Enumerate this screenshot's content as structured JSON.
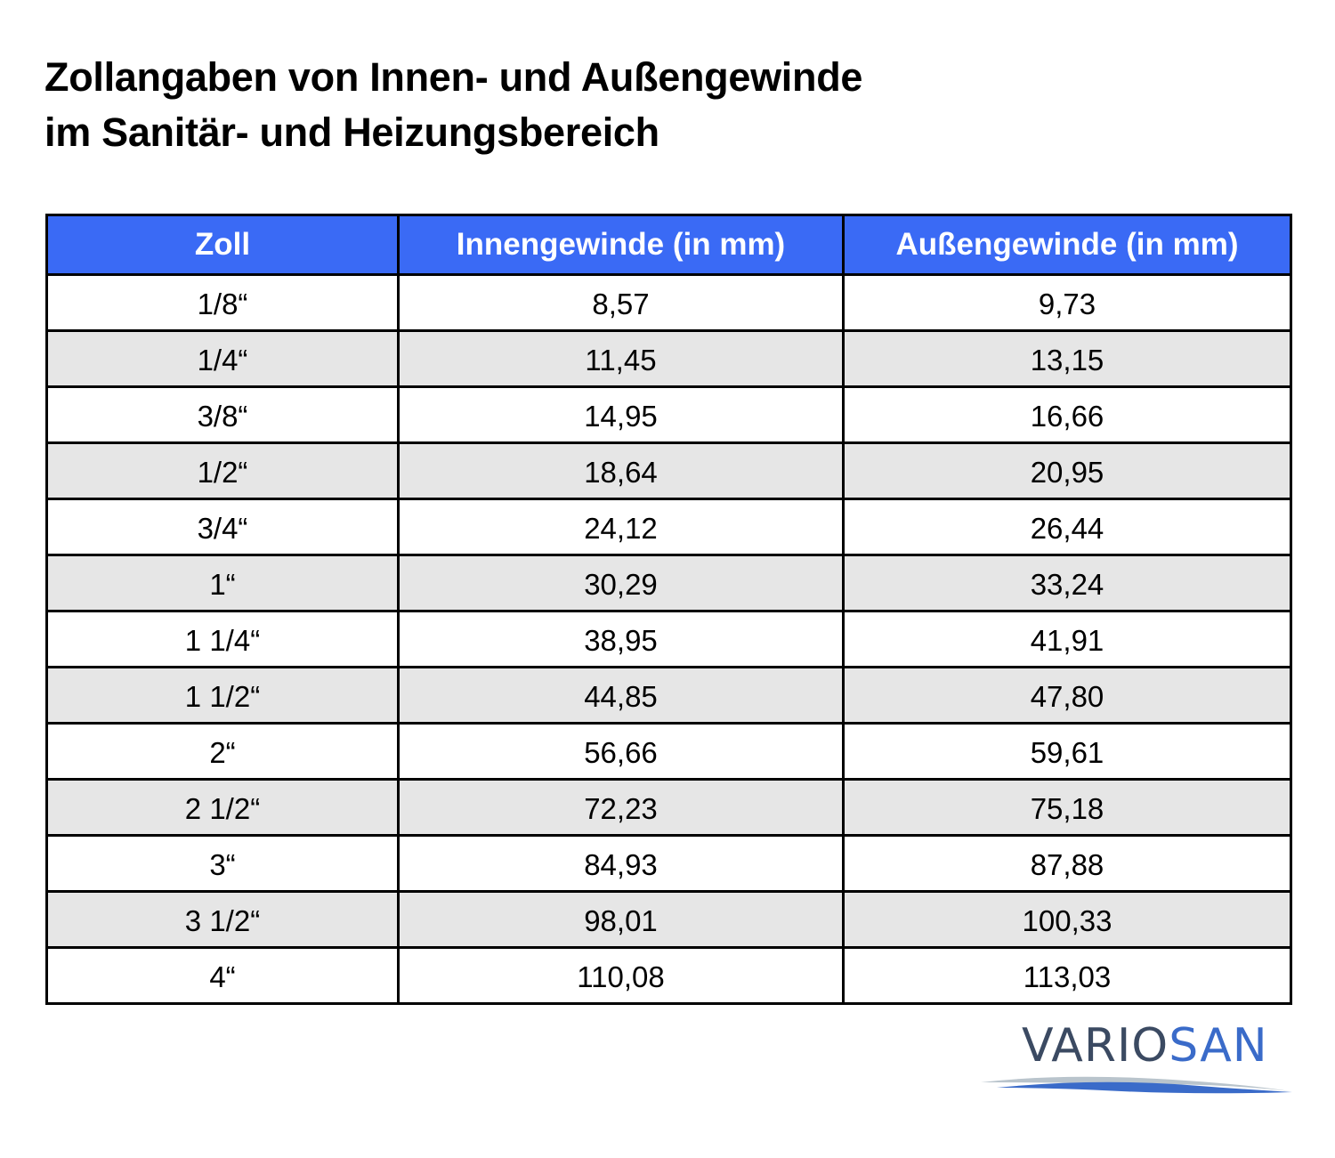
{
  "header": {
    "title": [
      "Zollangaben von Innen- und Außengewinde",
      "im Sanitär- und Heizungsbereich"
    ]
  },
  "table": {
    "columns": [
      "Zoll",
      "Innengewinde (in mm)",
      "Außengewinde (in mm)"
    ],
    "rows": [
      [
        "1/8“",
        "8,57",
        "9,73"
      ],
      [
        "1/4“",
        "11,45",
        "13,15"
      ],
      [
        "3/8“",
        "14,95",
        "16,66"
      ],
      [
        "1/2“",
        "18,64",
        "20,95"
      ],
      [
        "3/4“",
        "24,12",
        "26,44"
      ],
      [
        "1“",
        "30,29",
        "33,24"
      ],
      [
        "1 1/4“",
        "38,95",
        "41,91"
      ],
      [
        "1 1/2“",
        "44,85",
        "47,80"
      ],
      [
        "2“",
        "56,66",
        "59,61"
      ],
      [
        "2 1/2“",
        "72,23",
        "75,18"
      ],
      [
        "3“",
        "84,93",
        "87,88"
      ],
      [
        "3 1/2“",
        "98,01",
        "100,33"
      ],
      [
        "4“",
        "110,08",
        "113,03"
      ]
    ]
  },
  "logo": {
    "part1": "VARIO",
    "part2": "SAN"
  }
}
